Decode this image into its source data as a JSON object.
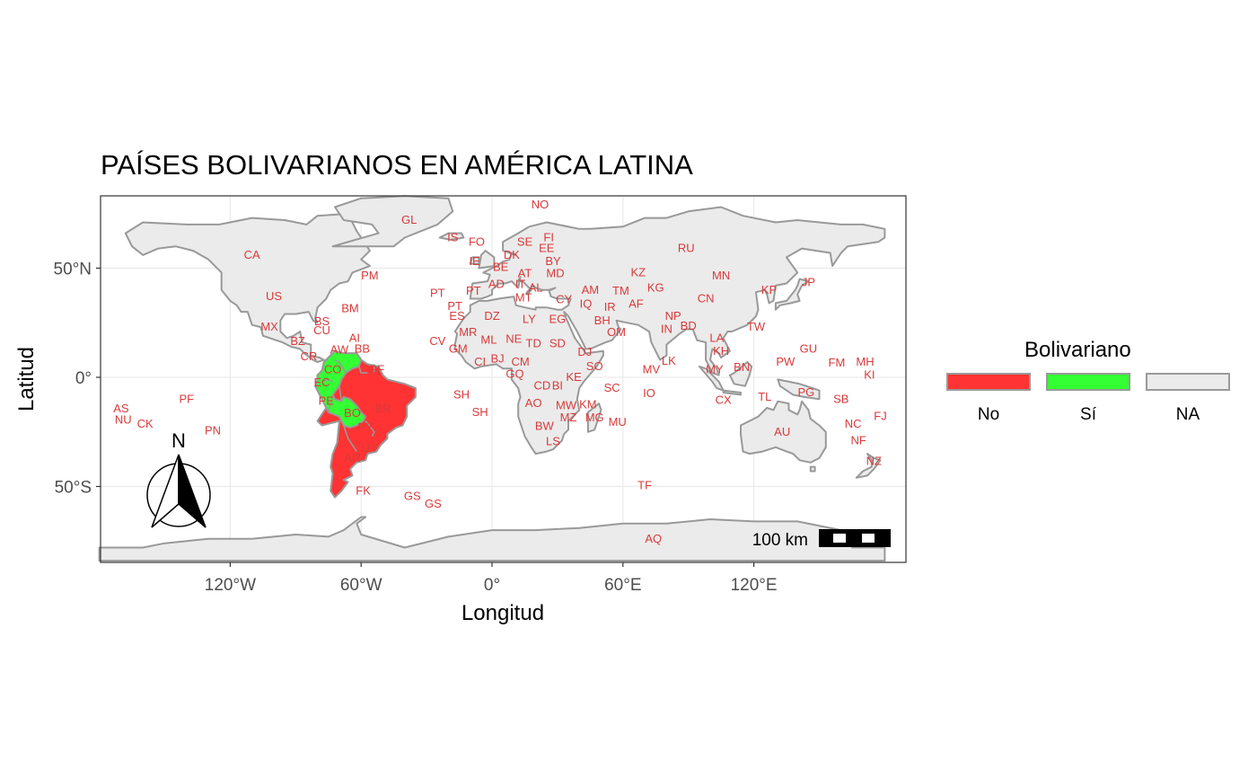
{
  "title": "PAÍSES BOLIVARIANOS EN AMÉRICA LATINA",
  "xlabel": "Longitud",
  "ylabel": "Latitud",
  "x_ticks": [
    {
      "label": "120°W",
      "lon": -120
    },
    {
      "label": "60°W",
      "lon": -60
    },
    {
      "label": "0°",
      "lon": 0
    },
    {
      "label": "60°E",
      "lon": 60
    },
    {
      "label": "120°E",
      "lon": 120
    }
  ],
  "y_ticks": [
    {
      "label": "50°N",
      "lat": 50
    },
    {
      "label": "0°",
      "lat": 0
    },
    {
      "label": "50°S",
      "lat": -50
    }
  ],
  "legend": {
    "title": "Bolivariano",
    "items": [
      {
        "label": "No",
        "color": "#ff3333"
      },
      {
        "label": "Sí",
        "color": "#33ff33"
      },
      {
        "label": "NA",
        "color": "#ebebeb"
      }
    ]
  },
  "scale_bar": {
    "label": "100 km"
  },
  "north_arrow": {
    "label": "N"
  },
  "colors": {
    "land": "#ebebeb",
    "border": "#999999",
    "bolivarian": "#33ff33",
    "non_bolivarian": "#ff3333",
    "country_code": "#d93a3a",
    "grid": "#ebebeb",
    "panel_border": "#333333"
  },
  "projection": "equirectangular",
  "bolivarian_countries": [
    "CO",
    "EC",
    "PE",
    "BO",
    "VE"
  ],
  "non_bolivarian_countries": [
    "BR",
    "AR",
    "PY",
    "UY",
    "CL",
    "GY",
    "SR",
    "GF"
  ],
  "country_codes": [
    {
      "code": "NO",
      "lon": 22,
      "lat": 79
    },
    {
      "code": "GL",
      "lon": -38,
      "lat": 72
    },
    {
      "code": "IS",
      "lon": -18,
      "lat": 64
    },
    {
      "code": "FO",
      "lon": -7,
      "lat": 62
    },
    {
      "code": "SE",
      "lon": 15,
      "lat": 62
    },
    {
      "code": "FI",
      "lon": 26,
      "lat": 64
    },
    {
      "code": "EE",
      "lon": 25,
      "lat": 59
    },
    {
      "code": "DK",
      "lon": 9,
      "lat": 56
    },
    {
      "code": "BY",
      "lon": 28,
      "lat": 53
    },
    {
      "code": "IE",
      "lon": -8,
      "lat": 53
    },
    {
      "code": "BE",
      "lon": 4,
      "lat": 50.5
    },
    {
      "code": "RU",
      "lon": 89,
      "lat": 59
    },
    {
      "code": "CA",
      "lon": -110,
      "lat": 56
    },
    {
      "code": "PM",
      "lon": -56,
      "lat": 46.5
    },
    {
      "code": "MD",
      "lon": 29,
      "lat": 47.5
    },
    {
      "code": "AT",
      "lon": 15,
      "lat": 47.5
    },
    {
      "code": "KZ",
      "lon": 67,
      "lat": 48
    },
    {
      "code": "MN",
      "lon": 105,
      "lat": 46.5
    },
    {
      "code": "AD",
      "lon": 2,
      "lat": 42.5
    },
    {
      "code": "PT",
      "lon": -25,
      "lat": 38.5
    },
    {
      "code": "PT",
      "lon": -8.5,
      "lat": 39.5
    },
    {
      "code": "IT",
      "lon": 13,
      "lat": 42.5
    },
    {
      "code": "AL",
      "lon": 20,
      "lat": 41
    },
    {
      "code": "AM",
      "lon": 45,
      "lat": 40
    },
    {
      "code": "TM",
      "lon": 59,
      "lat": 39.5
    },
    {
      "code": "KG",
      "lon": 75,
      "lat": 41
    },
    {
      "code": "KP",
      "lon": 127,
      "lat": 40
    },
    {
      "code": "JP",
      "lon": 145,
      "lat": 43.5
    },
    {
      "code": "US",
      "lon": -100,
      "lat": 37
    },
    {
      "code": "MT",
      "lon": 14.5,
      "lat": 36.5
    },
    {
      "code": "CY",
      "lon": 33,
      "lat": 35.5
    },
    {
      "code": "IQ",
      "lon": 43,
      "lat": 33.5
    },
    {
      "code": "AF",
      "lon": 66,
      "lat": 33.5
    },
    {
      "code": "CN",
      "lon": 98,
      "lat": 36
    },
    {
      "code": "PT",
      "lon": -17,
      "lat": 32.5
    },
    {
      "code": "BM",
      "lon": -65,
      "lat": 31.5
    },
    {
      "code": "IR",
      "lon": 54,
      "lat": 32
    },
    {
      "code": "NP",
      "lon": 83,
      "lat": 28
    },
    {
      "code": "ES",
      "lon": -16,
      "lat": 28
    },
    {
      "code": "DZ",
      "lon": 0,
      "lat": 28
    },
    {
      "code": "LY",
      "lon": 17,
      "lat": 26.5
    },
    {
      "code": "EG",
      "lon": 30,
      "lat": 26.5
    },
    {
      "code": "BH",
      "lon": 50.5,
      "lat": 26
    },
    {
      "code": "BS",
      "lon": -78,
      "lat": 25.5
    },
    {
      "code": "MX",
      "lon": -102,
      "lat": 23
    },
    {
      "code": "BD",
      "lon": 90,
      "lat": 23.5
    },
    {
      "code": "IN",
      "lon": 80,
      "lat": 22
    },
    {
      "code": "TW",
      "lon": 121,
      "lat": 23
    },
    {
      "code": "CU",
      "lon": -78,
      "lat": 21.5
    },
    {
      "code": "MR",
      "lon": -11,
      "lat": 20.5
    },
    {
      "code": "OM",
      "lon": 57,
      "lat": 20.5
    },
    {
      "code": "LA",
      "lon": 103,
      "lat": 18
    },
    {
      "code": "CV",
      "lon": -25,
      "lat": 16.5
    },
    {
      "code": "NE",
      "lon": 10,
      "lat": 17.5
    },
    {
      "code": "ML",
      "lon": -1.5,
      "lat": 17
    },
    {
      "code": "BZ",
      "lon": -89,
      "lat": 16.5
    },
    {
      "code": "AI",
      "lon": -63,
      "lat": 18
    },
    {
      "code": "TD",
      "lon": 19,
      "lat": 15.5
    },
    {
      "code": "SD",
      "lon": 30,
      "lat": 15.5
    },
    {
      "code": "GU",
      "lon": 145,
      "lat": 13
    },
    {
      "code": "GM",
      "lon": -15.5,
      "lat": 13
    },
    {
      "code": "BB",
      "lon": -59.5,
      "lat": 13
    },
    {
      "code": "AW",
      "lon": -70,
      "lat": 12.5
    },
    {
      "code": "KH",
      "lon": 105,
      "lat": 12
    },
    {
      "code": "DJ",
      "lon": 42.5,
      "lat": 11.5
    },
    {
      "code": "CR",
      "lon": -84,
      "lat": 9.5
    },
    {
      "code": "CI",
      "lon": -5.5,
      "lat": 7
    },
    {
      "code": "BJ",
      "lon": 2.5,
      "lat": 8.5
    },
    {
      "code": "CM",
      "lon": 13,
      "lat": 7
    },
    {
      "code": "PW",
      "lon": 134.5,
      "lat": 7
    },
    {
      "code": "FM",
      "lon": 158,
      "lat": 6.5
    },
    {
      "code": "MH",
      "lon": 171,
      "lat": 7
    },
    {
      "code": "SO",
      "lon": 47,
      "lat": 5
    },
    {
      "code": "LK",
      "lon": 81,
      "lat": 7.5
    },
    {
      "code": "MY",
      "lon": 102,
      "lat": 3.5
    },
    {
      "code": "BN",
      "lon": 114.5,
      "lat": 4.5
    },
    {
      "code": "MV",
      "lon": 73,
      "lat": 3.5
    },
    {
      "code": "CO",
      "lon": -73,
      "lat": 3.5
    },
    {
      "code": "GF",
      "lon": -53,
      "lat": 3.5
    },
    {
      "code": "KI",
      "lon": 173,
      "lat": 1
    },
    {
      "code": "GQ",
      "lon": 10.5,
      "lat": 1.5
    },
    {
      "code": "KE",
      "lon": 37.5,
      "lat": 0
    },
    {
      "code": "EC",
      "lon": -78,
      "lat": -2.5
    },
    {
      "code": "CD",
      "lon": 23,
      "lat": -4
    },
    {
      "code": "BI",
      "lon": 30,
      "lat": -4
    },
    {
      "code": "SC",
      "lon": 55,
      "lat": -5
    },
    {
      "code": "PG",
      "lon": 144,
      "lat": -7
    },
    {
      "code": "IO",
      "lon": 72,
      "lat": -7.5
    },
    {
      "code": "SH",
      "lon": -14,
      "lat": -8
    },
    {
      "code": "PE",
      "lon": -76,
      "lat": -11
    },
    {
      "code": "SB",
      "lon": 160,
      "lat": -10
    },
    {
      "code": "CX",
      "lon": 106,
      "lat": -10.5
    },
    {
      "code": "TL",
      "lon": 125,
      "lat": -9
    },
    {
      "code": "AO",
      "lon": 19,
      "lat": -12
    },
    {
      "code": "MW",
      "lon": 34,
      "lat": -13
    },
    {
      "code": "KM",
      "lon": 44,
      "lat": -12.5
    },
    {
      "code": "PF",
      "lon": -140,
      "lat": -10
    },
    {
      "code": "AS",
      "lon": -170,
      "lat": -14.5
    },
    {
      "code": "BR",
      "lon": -50,
      "lat": -14.5
    },
    {
      "code": "SH",
      "lon": -5.5,
      "lat": -16
    },
    {
      "code": "BO",
      "lon": -64,
      "lat": -16.5
    },
    {
      "code": "NU",
      "lon": -169,
      "lat": -19.5
    },
    {
      "code": "MZ",
      "lon": 35,
      "lat": -18.5
    },
    {
      "code": "MG",
      "lon": 47,
      "lat": -18.5
    },
    {
      "code": "MU",
      "lon": 57.5,
      "lat": -20.5
    },
    {
      "code": "NC",
      "lon": 165.5,
      "lat": -21.5
    },
    {
      "code": "FJ",
      "lon": 178,
      "lat": -18
    },
    {
      "code": "CK",
      "lon": -159,
      "lat": -21.5
    },
    {
      "code": "BW",
      "lon": 24,
      "lat": -22.5
    },
    {
      "code": "PY",
      "lon": -58,
      "lat": -23
    },
    {
      "code": "PN",
      "lon": -128,
      "lat": -24.5
    },
    {
      "code": "AU",
      "lon": 133,
      "lat": -25
    },
    {
      "code": "LS",
      "lon": 28,
      "lat": -29.5
    },
    {
      "code": "NF",
      "lon": 168,
      "lat": -29
    },
    {
      "code": "UY",
      "lon": -56,
      "lat": -32.5
    },
    {
      "code": "AR",
      "lon": -64,
      "lat": -37
    },
    {
      "code": "NZ",
      "lon": 175,
      "lat": -38.5
    },
    {
      "code": "TF",
      "lon": 70,
      "lat": -49.5
    },
    {
      "code": "FK",
      "lon": -59,
      "lat": -52
    },
    {
      "code": "GS",
      "lon": -36.5,
      "lat": -54.5
    },
    {
      "code": "GS",
      "lon": -27,
      "lat": -58
    },
    {
      "code": "AQ",
      "lon": 74,
      "lat": -74
    }
  ]
}
